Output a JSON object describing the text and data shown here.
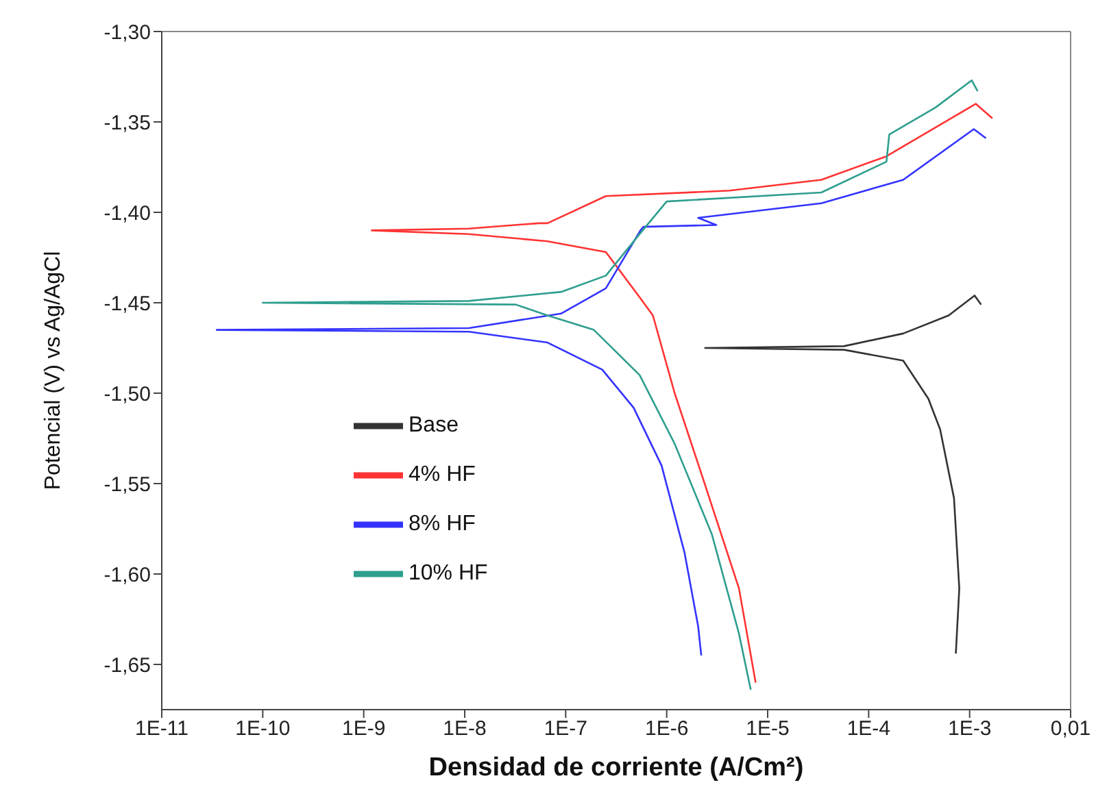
{
  "chart_data": {
    "type": "line",
    "xlabel": "Densidad de corriente (A/Cm²)",
    "ylabel": "Potencial (V) vs Ag/AgCl",
    "log": "x",
    "legend": "left",
    "xlim": [
      1e-11,
      0.01
    ],
    "xticks": [
      {
        "value": 1e-11,
        "label": "1E-11"
      },
      {
        "value": 1e-10,
        "label": "1E-10"
      },
      {
        "value": 1e-09,
        "label": "1E-9"
      },
      {
        "value": 1e-08,
        "label": "1E-8"
      },
      {
        "value": 1e-07,
        "label": "1E-7"
      },
      {
        "value": 1e-06,
        "label": "1E-6"
      },
      {
        "value": 1e-05,
        "label": "1E-5"
      },
      {
        "value": 0.0001,
        "label": "1E-4"
      },
      {
        "value": 0.001,
        "label": "1E-3"
      },
      {
        "value": 0.01,
        "label": "0,01"
      }
    ],
    "ylim": [
      -1.675,
      -1.3
    ],
    "yticks": [
      {
        "value": -1.65,
        "label": "-1,65"
      },
      {
        "value": -1.6,
        "label": "-1,60"
      },
      {
        "value": -1.55,
        "label": "-1,55"
      },
      {
        "value": -1.5,
        "label": "-1,50"
      },
      {
        "value": -1.45,
        "label": "-1,45"
      },
      {
        "value": -1.4,
        "label": "-1,40"
      },
      {
        "value": -1.35,
        "label": "-1,35"
      },
      {
        "value": -1.3,
        "label": "-1,30"
      }
    ],
    "series": [
      {
        "name": "Base",
        "color": "#333333",
        "x": [
          0.00073,
          0.00079,
          0.0007,
          0.00051,
          0.00039,
          0.00022,
          5.7e-05,
          2.4e-06,
          5.7e-05,
          0.00022,
          0.00062,
          0.00112,
          0.0013
        ],
        "values": [
          -1.644,
          -1.608,
          -1.558,
          -1.52,
          -1.503,
          -1.482,
          -1.476,
          -1.475,
          -1.474,
          -1.467,
          -1.457,
          -1.446,
          -1.451
        ]
      },
      {
        "name": "4% HF",
        "color": "#ff3333",
        "x": [
          7.6e-06,
          5.2e-06,
          2.25e-06,
          1.2e-06,
          7.3e-07,
          5.4e-07,
          2.5e-07,
          6.6e-08,
          1.1e-08,
          1.2e-09,
          1.1e-08,
          5.4e-08,
          6.6e-08,
          2.5e-07,
          4.2e-06,
          3.4e-05,
          0.00015,
          0.00115,
          0.00168
        ],
        "values": [
          -1.66,
          -1.608,
          -1.546,
          -1.5,
          -1.457,
          -1.447,
          -1.422,
          -1.416,
          -1.412,
          -1.41,
          -1.409,
          -1.406,
          -1.406,
          -1.391,
          -1.388,
          -1.382,
          -1.369,
          -1.34,
          -1.348
        ]
      },
      {
        "name": "8% HF",
        "color": "#3333ff",
        "x": [
          2.2e-06,
          2.05e-06,
          1.5e-06,
          8.9e-07,
          4.7e-07,
          2.3e-07,
          6.6e-08,
          1.1e-08,
          3.5e-11,
          1.1e-08,
          9e-08,
          2.5e-07,
          5.5e-07,
          5.9e-07,
          3.1e-06,
          2.05e-06,
          3.4e-05,
          0.00022,
          0.0011,
          0.00145
        ],
        "values": [
          -1.645,
          -1.629,
          -1.588,
          -1.54,
          -1.508,
          -1.487,
          -1.472,
          -1.466,
          -1.465,
          -1.464,
          -1.456,
          -1.442,
          -1.41,
          -1.408,
          -1.407,
          -1.403,
          -1.395,
          -1.382,
          -1.354,
          -1.359
        ]
      },
      {
        "name": "10% HF",
        "color": "#2e9e8e",
        "x": [
          6.8e-06,
          5.2e-06,
          2.8e-06,
          1.2e-06,
          5.4e-07,
          1.9e-07,
          6.6e-08,
          3.2e-08,
          1e-10,
          1.1e-08,
          9e-08,
          2.5e-07,
          5.4e-07,
          1e-06,
          3.4e-05,
          0.00015,
          0.00016,
          0.00046,
          0.00105,
          0.0012
        ],
        "values": [
          -1.664,
          -1.633,
          -1.578,
          -1.528,
          -1.49,
          -1.465,
          -1.457,
          -1.451,
          -1.45,
          -1.449,
          -1.444,
          -1.435,
          -1.412,
          -1.394,
          -1.389,
          -1.372,
          -1.357,
          -1.342,
          -1.327,
          -1.333
        ]
      }
    ]
  }
}
